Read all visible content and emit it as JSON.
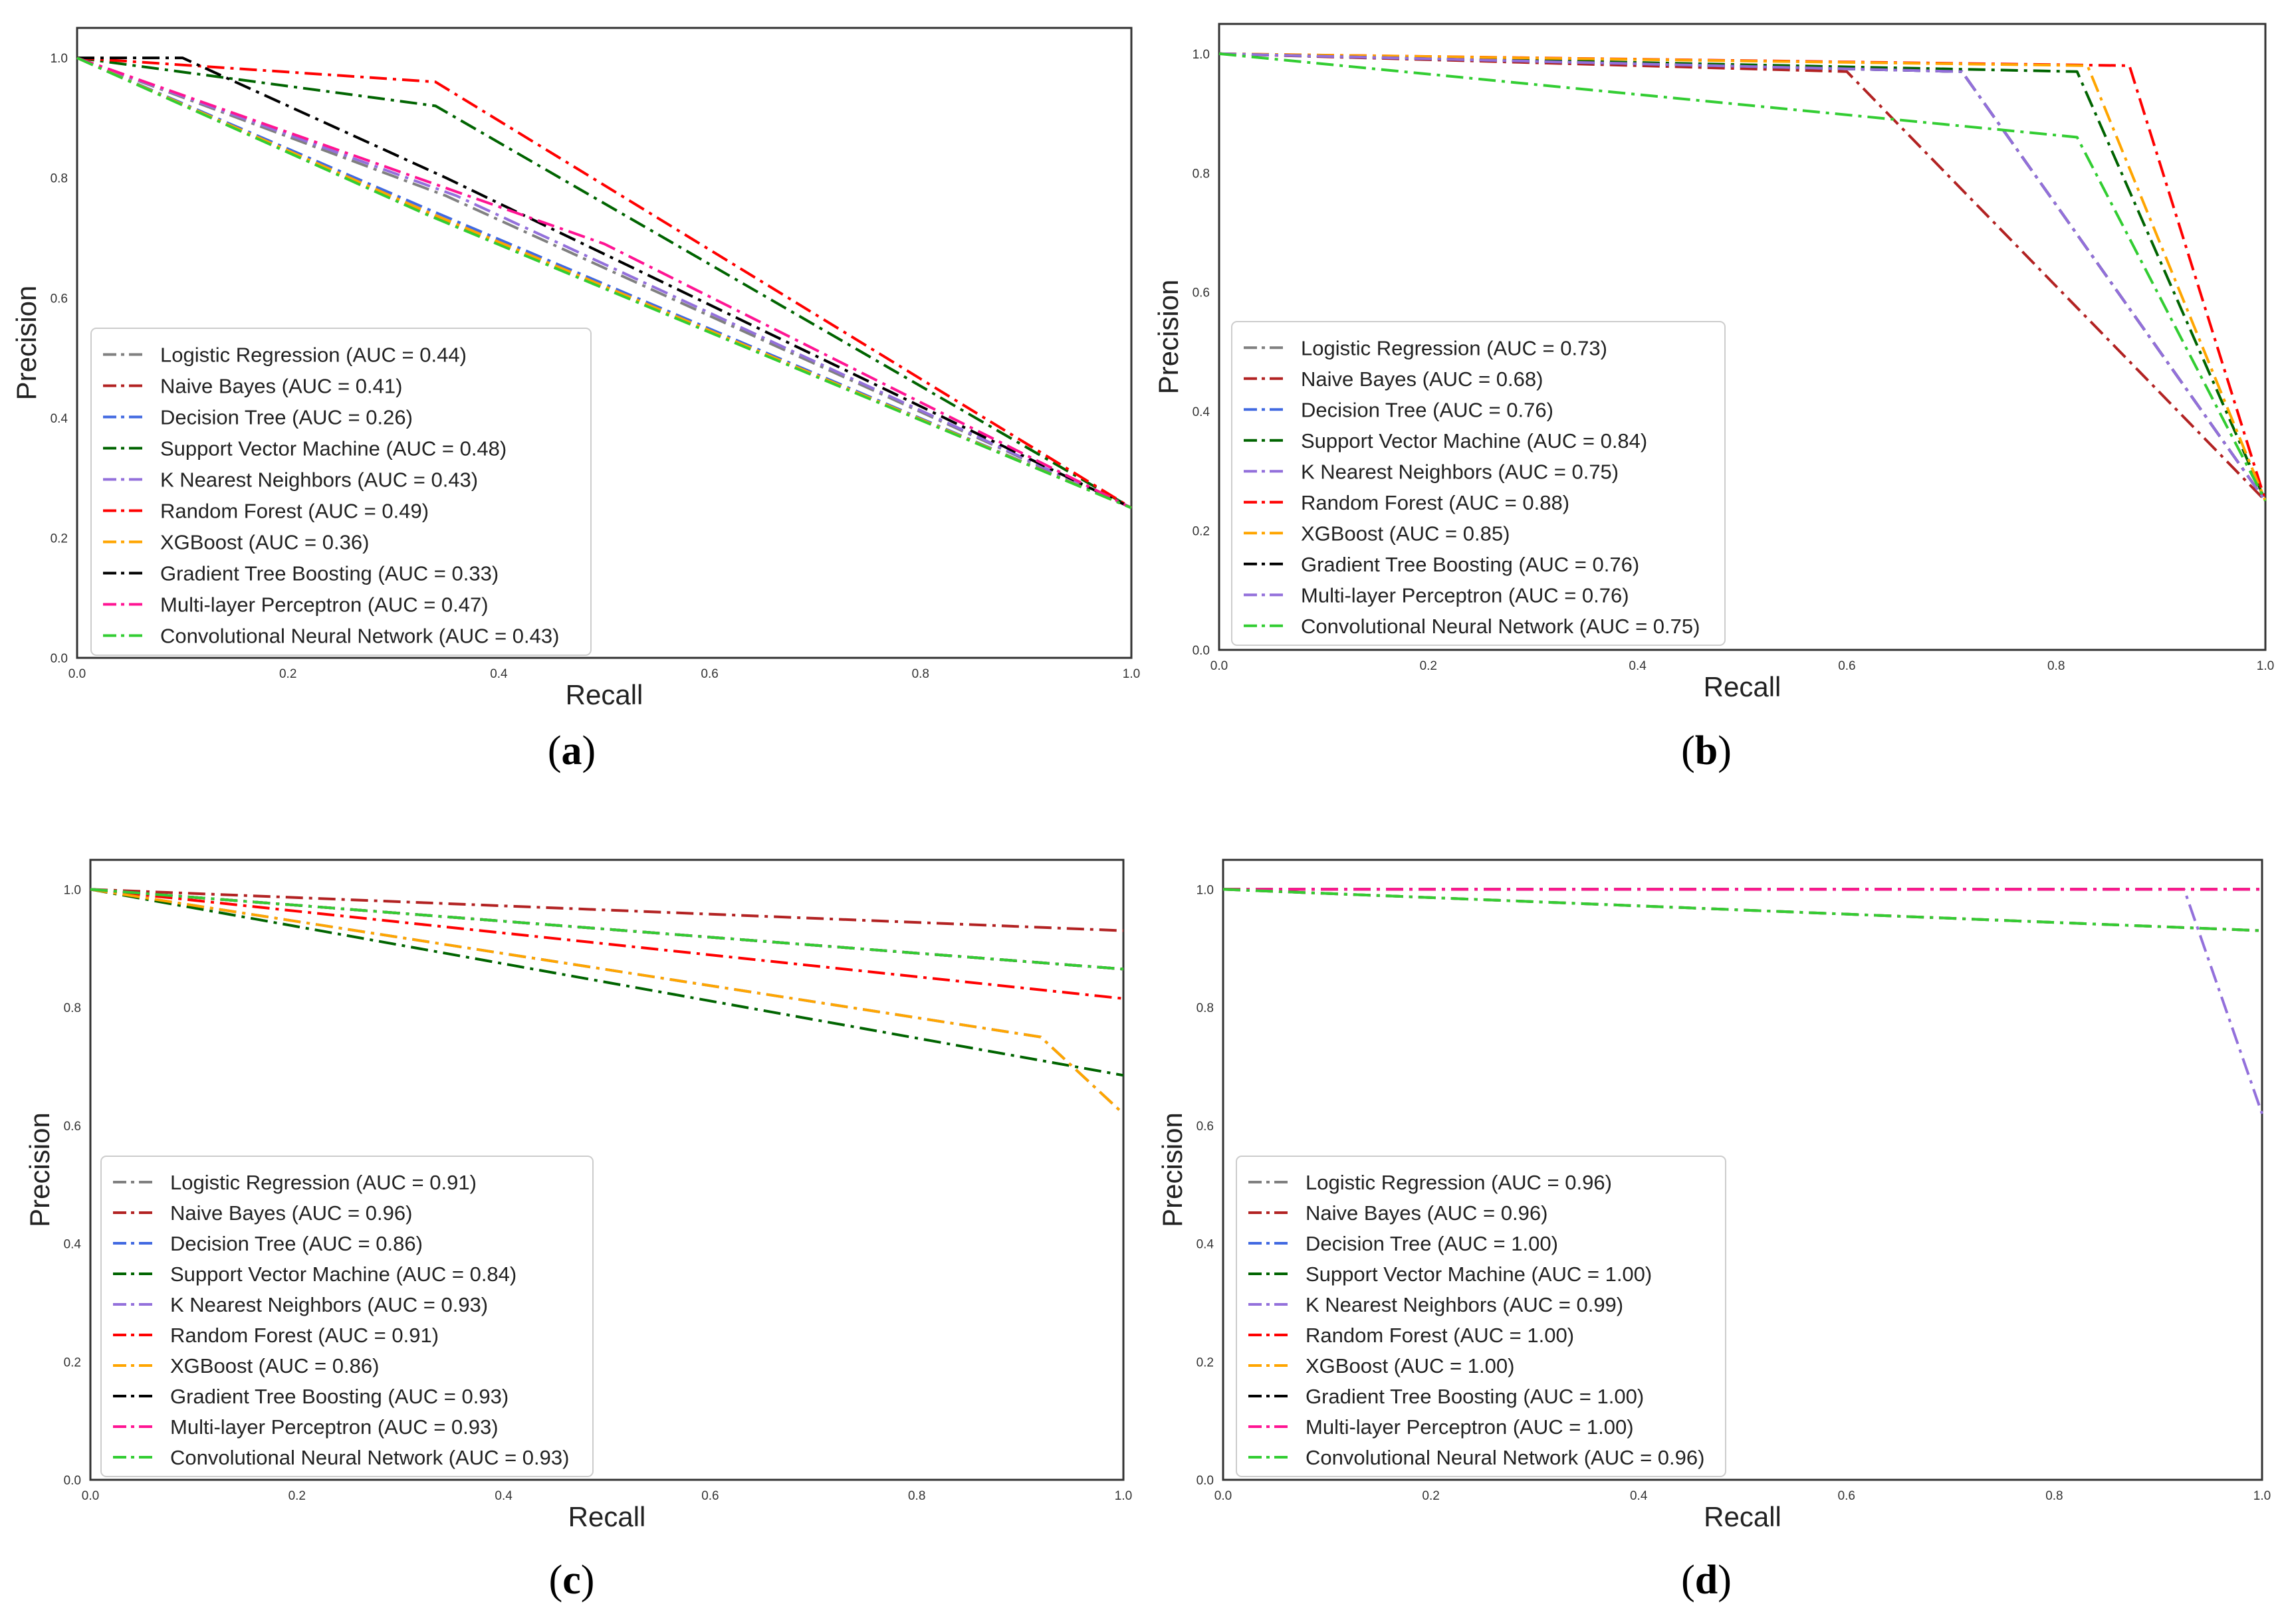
{
  "chart_data": [
    {
      "type": "line",
      "panel": "a",
      "caption_letter": "a",
      "xlabel": "Recall",
      "ylabel": "Precision",
      "xlim": [
        0,
        1
      ],
      "ylim": [
        0,
        1.05
      ],
      "xticks": [
        0,
        0.2,
        0.4,
        0.6,
        0.8,
        1
      ],
      "xtick_labels": [
        "0.0",
        "0.2",
        "0.4",
        "0.6",
        "0.8",
        "1.0"
      ],
      "yticks": [
        0,
        0.2,
        0.4,
        0.6,
        0.8,
        1
      ],
      "ytick_labels": [
        "0.0",
        "0.2",
        "0.4",
        "0.6",
        "0.8",
        "1.0"
      ],
      "legend_position": "lower-left",
      "series": [
        {
          "name": "Logistic Regression (AUC = 0.44)",
          "color": "#808080",
          "points": [
            [
              0,
              1
            ],
            [
              0.35,
              0.77
            ],
            [
              1,
              0.25
            ]
          ]
        },
        {
          "name": "Naive Bayes (AUC = 0.41)",
          "color": "#b22222",
          "points": [
            [
              0,
              1
            ],
            [
              0.32,
              0.75
            ],
            [
              1,
              0.25
            ]
          ]
        },
        {
          "name": "Decision Tree (AUC = 0.26)",
          "color": "#4169e1",
          "points": [
            [
              0,
              1
            ],
            [
              0.33,
              0.75
            ],
            [
              1,
              0.25
            ]
          ]
        },
        {
          "name": "Support Vector Machine (AUC = 0.48)",
          "color": "#006400",
          "points": [
            [
              0,
              1
            ],
            [
              0.34,
              0.92
            ],
            [
              1,
              0.25
            ]
          ]
        },
        {
          "name": "K Nearest Neighbors (AUC = 0.43)",
          "color": "#9370db",
          "points": [
            [
              0,
              1
            ],
            [
              0.36,
              0.77
            ],
            [
              1,
              0.25
            ]
          ]
        },
        {
          "name": "Random Forest (AUC = 0.49)",
          "color": "#ff0000",
          "points": [
            [
              0,
              1
            ],
            [
              0.34,
              0.96
            ],
            [
              1,
              0.25
            ]
          ]
        },
        {
          "name": "XGBoost (AUC = 0.36)",
          "color": "#ffa500",
          "points": [
            [
              0,
              1
            ],
            [
              0.33,
              0.745
            ],
            [
              1,
              0.25
            ]
          ]
        },
        {
          "name": "Gradient Tree Boosting (AUC = 0.33)",
          "color": "#000000",
          "points": [
            [
              0,
              1
            ],
            [
              0.1,
              1
            ],
            [
              0.35,
              0.8
            ],
            [
              1,
              0.25
            ]
          ]
        },
        {
          "name": "Multi-layer Perceptron (AUC = 0.47)",
          "color": "#ff1493",
          "points": [
            [
              0,
              1
            ],
            [
              0.5,
              0.69
            ],
            [
              1,
              0.25
            ]
          ]
        },
        {
          "name": "Convolutional Neural Network (AUC = 0.43)",
          "color": "#32cd32",
          "points": [
            [
              0,
              1
            ],
            [
              0.33,
              0.74
            ],
            [
              1,
              0.25
            ]
          ]
        }
      ]
    },
    {
      "type": "line",
      "panel": "b",
      "caption_letter": "b",
      "xlabel": "Recall",
      "ylabel": "Precision",
      "xlim": [
        0,
        1
      ],
      "ylim": [
        0,
        1.05
      ],
      "xticks": [
        0,
        0.2,
        0.4,
        0.6,
        0.8,
        1
      ],
      "xtick_labels": [
        "0.0",
        "0.2",
        "0.4",
        "0.6",
        "0.8",
        "1.0"
      ],
      "yticks": [
        0,
        0.2,
        0.4,
        0.6,
        0.8,
        1
      ],
      "ytick_labels": [
        "0.0",
        "0.2",
        "0.4",
        "0.6",
        "0.8",
        "1.0"
      ],
      "legend_position": "lower-left",
      "series": [
        {
          "name": "Logistic Regression (AUC = 0.73)",
          "color": "#808080",
          "points": [
            [
              0,
              1
            ],
            [
              0.71,
              0.97
            ],
            [
              1,
              0.25
            ]
          ]
        },
        {
          "name": "Naive Bayes (AUC = 0.68)",
          "color": "#b22222",
          "points": [
            [
              0,
              1
            ],
            [
              0.6,
              0.97
            ],
            [
              1,
              0.25
            ]
          ]
        },
        {
          "name": "Decision Tree (AUC = 0.76)",
          "color": "#4169e1",
          "points": [
            [
              0,
              1
            ],
            [
              0.71,
              0.97
            ],
            [
              1,
              0.25
            ]
          ]
        },
        {
          "name": "Support Vector Machine (AUC = 0.84)",
          "color": "#006400",
          "points": [
            [
              0,
              1
            ],
            [
              0.82,
              0.97
            ],
            [
              1,
              0.25
            ]
          ]
        },
        {
          "name": "K Nearest Neighbors (AUC = 0.75)",
          "color": "#9370db",
          "points": [
            [
              0,
              1
            ],
            [
              0.71,
              0.97
            ],
            [
              1,
              0.25
            ]
          ]
        },
        {
          "name": "Random Forest (AUC = 0.88)",
          "color": "#ff0000",
          "points": [
            [
              0,
              1
            ],
            [
              0.87,
              0.98
            ],
            [
              1,
              0.25
            ]
          ]
        },
        {
          "name": "XGBoost (AUC = 0.85)",
          "color": "#ffa500",
          "points": [
            [
              0,
              1
            ],
            [
              0.83,
              0.98
            ],
            [
              1,
              0.25
            ]
          ]
        },
        {
          "name": "Gradient Tree Boosting (AUC = 0.76)",
          "color": "#000000",
          "points": [
            [
              0,
              1
            ],
            [
              0.71,
              0.97
            ],
            [
              1,
              0.25
            ]
          ]
        },
        {
          "name": "Multi-layer Perceptron (AUC = 0.76)",
          "color": "#9370db",
          "points": [
            [
              0,
              1
            ],
            [
              0.71,
              0.97
            ],
            [
              1,
              0.25
            ]
          ]
        },
        {
          "name": "Convolutional Neural Network (AUC = 0.75)",
          "color": "#32cd32",
          "points": [
            [
              0,
              1
            ],
            [
              0.82,
              0.86
            ],
            [
              1,
              0.25
            ]
          ]
        }
      ]
    },
    {
      "type": "line",
      "panel": "c",
      "caption_letter": "c",
      "xlabel": "Recall",
      "ylabel": "Precision",
      "xlim": [
        0,
        1
      ],
      "ylim": [
        0,
        1.05
      ],
      "xticks": [
        0,
        0.2,
        0.4,
        0.6,
        0.8,
        1
      ],
      "xtick_labels": [
        "0.0",
        "0.2",
        "0.4",
        "0.6",
        "0.8",
        "1.0"
      ],
      "yticks": [
        0,
        0.2,
        0.4,
        0.6,
        0.8,
        1
      ],
      "ytick_labels": [
        "0.0",
        "0.2",
        "0.4",
        "0.6",
        "0.8",
        "1.0"
      ],
      "legend_position": "lower-left",
      "series": [
        {
          "name": "Logistic Regression (AUC = 0.91)",
          "color": "#808080",
          "points": [
            [
              0,
              1
            ],
            [
              1,
              0.865
            ]
          ]
        },
        {
          "name": "Naive Bayes (AUC = 0.96)",
          "color": "#b22222",
          "points": [
            [
              0,
              1
            ],
            [
              1,
              0.93
            ]
          ]
        },
        {
          "name": "Decision Tree (AUC = 0.86)",
          "color": "#4169e1",
          "points": [
            [
              0,
              1
            ],
            [
              0.92,
              0.75
            ],
            [
              1,
              0.62
            ]
          ]
        },
        {
          "name": "Support Vector Machine (AUC = 0.84)",
          "color": "#006400",
          "points": [
            [
              0,
              1
            ],
            [
              1,
              0.685
            ]
          ]
        },
        {
          "name": "K Nearest Neighbors (AUC = 0.93)",
          "color": "#9370db",
          "points": [
            [
              0,
              1
            ],
            [
              1,
              0.865
            ]
          ]
        },
        {
          "name": "Random Forest (AUC = 0.91)",
          "color": "#ff0000",
          "points": [
            [
              0,
              1
            ],
            [
              1,
              0.815
            ]
          ]
        },
        {
          "name": "XGBoost (AUC = 0.86)",
          "color": "#ffa500",
          "points": [
            [
              0,
              1
            ],
            [
              0.92,
              0.75
            ],
            [
              1,
              0.62
            ]
          ]
        },
        {
          "name": "Gradient Tree Boosting (AUC = 0.93)",
          "color": "#000000",
          "points": [
            [
              0,
              1
            ],
            [
              1,
              0.865
            ]
          ]
        },
        {
          "name": "Multi-layer Perceptron (AUC = 0.93)",
          "color": "#ff1493",
          "points": [
            [
              0,
              1
            ],
            [
              1,
              0.865
            ]
          ]
        },
        {
          "name": "Convolutional Neural Network (AUC = 0.93)",
          "color": "#32cd32",
          "points": [
            [
              0,
              1
            ],
            [
              1,
              0.865
            ]
          ]
        }
      ]
    },
    {
      "type": "line",
      "panel": "d",
      "caption_letter": "d",
      "xlabel": "Recall",
      "ylabel": "Precision",
      "xlim": [
        0,
        1
      ],
      "ylim": [
        0,
        1.05
      ],
      "xticks": [
        0,
        0.2,
        0.4,
        0.6,
        0.8,
        1
      ],
      "xtick_labels": [
        "0.0",
        "0.2",
        "0.4",
        "0.6",
        "0.8",
        "1.0"
      ],
      "yticks": [
        0,
        0.2,
        0.4,
        0.6,
        0.8,
        1
      ],
      "ytick_labels": [
        "0.0",
        "0.2",
        "0.4",
        "0.6",
        "0.8",
        "1.0"
      ],
      "legend_position": "lower-left",
      "series": [
        {
          "name": "Logistic Regression (AUC = 0.96)",
          "color": "#808080",
          "points": [
            [
              0,
              1
            ],
            [
              1,
              0.93
            ]
          ]
        },
        {
          "name": "Naive Bayes (AUC = 0.96)",
          "color": "#b22222",
          "points": [
            [
              0,
              1
            ],
            [
              1,
              0.93
            ]
          ]
        },
        {
          "name": "Decision Tree (AUC = 1.00)",
          "color": "#4169e1",
          "points": [
            [
              0,
              1
            ],
            [
              1,
              1
            ]
          ]
        },
        {
          "name": "Support Vector Machine (AUC = 1.00)",
          "color": "#006400",
          "points": [
            [
              0,
              1
            ],
            [
              1,
              1
            ]
          ]
        },
        {
          "name": "K Nearest Neighbors (AUC = 0.99)",
          "color": "#9370db",
          "points": [
            [
              0,
              1
            ],
            [
              0.925,
              1
            ],
            [
              1,
              0.62
            ]
          ]
        },
        {
          "name": "Random Forest (AUC = 1.00)",
          "color": "#ff0000",
          "points": [
            [
              0,
              1
            ],
            [
              1,
              1
            ]
          ]
        },
        {
          "name": "XGBoost (AUC = 1.00)",
          "color": "#ffa500",
          "points": [
            [
              0,
              1
            ],
            [
              1,
              1
            ]
          ]
        },
        {
          "name": "Gradient Tree Boosting (AUC = 1.00)",
          "color": "#000000",
          "points": [
            [
              0,
              1
            ],
            [
              1,
              1
            ]
          ]
        },
        {
          "name": "Multi-layer Perceptron (AUC = 1.00)",
          "color": "#ff1493",
          "points": [
            [
              0,
              1
            ],
            [
              1,
              1
            ]
          ]
        },
        {
          "name": "Convolutional Neural Network (AUC = 0.96)",
          "color": "#32cd32",
          "points": [
            [
              0,
              1
            ],
            [
              1,
              0.93
            ]
          ]
        }
      ]
    }
  ]
}
